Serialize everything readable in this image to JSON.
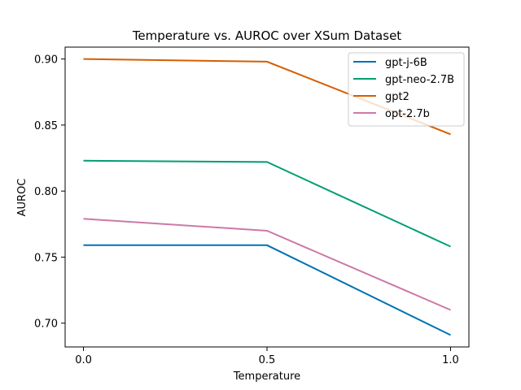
{
  "chart_data": {
    "type": "line",
    "title": "Temperature vs. AUROC over XSum Dataset",
    "xlabel": "Temperature",
    "ylabel": "AUROC",
    "x": [
      0.0,
      0.5,
      1.0
    ],
    "x_tick_labels": [
      "0.0",
      "0.5",
      "1.0"
    ],
    "xlim": [
      -0.05,
      1.05
    ],
    "ylim": [
      0.682,
      0.909
    ],
    "y_ticks": [
      0.7,
      0.75,
      0.8,
      0.85,
      0.9
    ],
    "y_tick_labels": [
      "0.70",
      "0.75",
      "0.80",
      "0.85",
      "0.90"
    ],
    "grid": false,
    "legend_position": "top-right",
    "series": [
      {
        "name": "gpt-j-6B",
        "color": "#0072b2",
        "values": [
          0.759,
          0.759,
          0.691
        ]
      },
      {
        "name": "gpt-neo-2.7B",
        "color": "#009e73",
        "values": [
          0.823,
          0.822,
          0.758
        ]
      },
      {
        "name": "gpt2",
        "color": "#d55e00",
        "values": [
          0.9,
          0.898,
          0.843
        ]
      },
      {
        "name": "opt-2.7b",
        "color": "#cc79a7",
        "values": [
          0.779,
          0.77,
          0.71
        ]
      }
    ]
  }
}
